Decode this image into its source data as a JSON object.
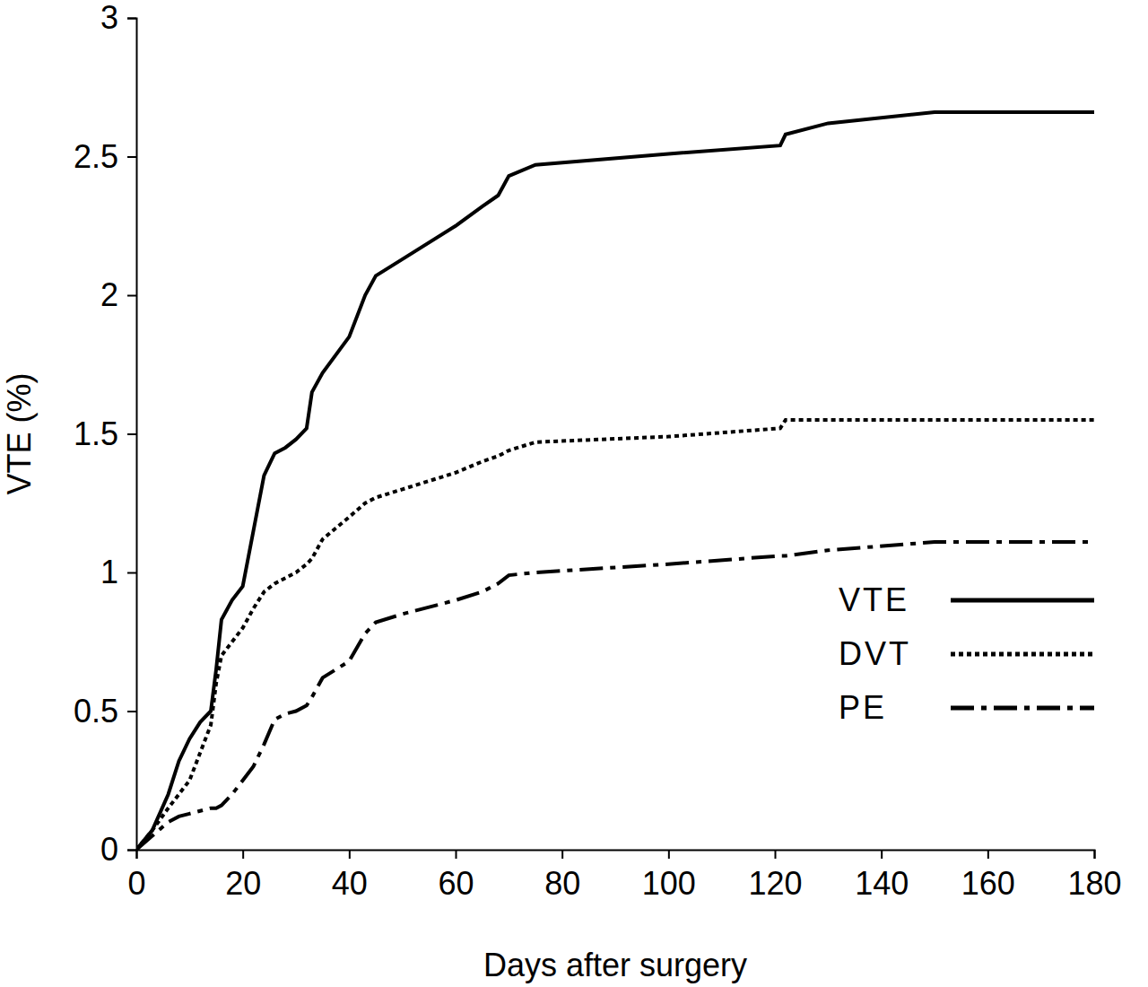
{
  "chart_data": {
    "type": "line",
    "x_label": "Days after surgery",
    "y_label": "VTE (%)",
    "x": [
      0,
      3,
      6,
      8,
      10,
      12,
      14,
      15,
      16,
      18,
      20,
      22,
      24,
      26,
      28,
      30,
      32,
      33,
      35,
      40,
      43,
      45,
      50,
      60,
      65,
      68,
      70,
      75,
      100,
      121,
      122,
      130,
      150,
      180
    ],
    "series": [
      {
        "name": "VTE",
        "color": "#000000",
        "line_style": "solid",
        "values": [
          0,
          0.07,
          0.2,
          0.32,
          0.4,
          0.46,
          0.5,
          0.65,
          0.83,
          0.9,
          0.95,
          1.15,
          1.35,
          1.43,
          1.45,
          1.48,
          1.52,
          1.65,
          1.72,
          1.85,
          2.0,
          2.07,
          2.13,
          2.25,
          2.32,
          2.36,
          2.43,
          2.47,
          2.51,
          2.54,
          2.58,
          2.62,
          2.66,
          2.66
        ]
      },
      {
        "name": "DVT",
        "color": "#000000",
        "line_style": "dotted",
        "values": [
          0,
          0.07,
          0.15,
          0.2,
          0.25,
          0.35,
          0.45,
          0.6,
          0.7,
          0.75,
          0.8,
          0.87,
          0.93,
          0.96,
          0.98,
          1.0,
          1.03,
          1.05,
          1.12,
          1.2,
          1.25,
          1.27,
          1.3,
          1.36,
          1.4,
          1.42,
          1.44,
          1.47,
          1.49,
          1.52,
          1.55,
          1.55,
          1.55,
          1.55
        ]
      },
      {
        "name": "PE",
        "color": "#000000",
        "line_style": "dashdot",
        "values": [
          0,
          0.05,
          0.1,
          0.12,
          0.13,
          0.14,
          0.15,
          0.15,
          0.16,
          0.2,
          0.25,
          0.3,
          0.38,
          0.47,
          0.49,
          0.5,
          0.52,
          0.55,
          0.62,
          0.68,
          0.78,
          0.82,
          0.85,
          0.9,
          0.93,
          0.96,
          0.99,
          1.0,
          1.03,
          1.06,
          1.06,
          1.08,
          1.11,
          1.11
        ]
      }
    ],
    "xlim": [
      0,
      180
    ],
    "xticks": [
      0,
      20,
      40,
      60,
      80,
      100,
      120,
      140,
      160,
      180
    ],
    "ylim": [
      0,
      3
    ],
    "yticks": [
      0,
      0.5,
      1,
      1.5,
      2,
      2.5,
      3
    ],
    "grid": false,
    "legend": "right"
  }
}
